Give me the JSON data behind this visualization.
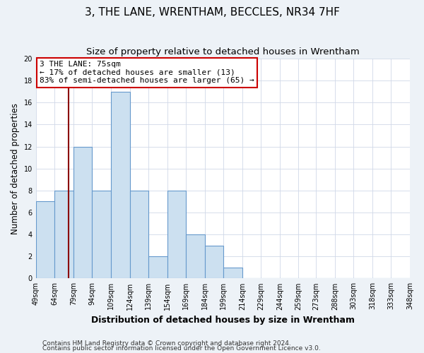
{
  "title": "3, THE LANE, WRENTHAM, BECCLES, NR34 7HF",
  "subtitle": "Size of property relative to detached houses in Wrentham",
  "xlabel": "Distribution of detached houses by size in Wrentham",
  "ylabel": "Number of detached properties",
  "bin_labels": [
    "49sqm",
    "64sqm",
    "79sqm",
    "94sqm",
    "109sqm",
    "124sqm",
    "139sqm",
    "154sqm",
    "169sqm",
    "184sqm",
    "199sqm",
    "214sqm",
    "229sqm",
    "244sqm",
    "259sqm",
    "273sqm",
    "288sqm",
    "303sqm",
    "318sqm",
    "333sqm",
    "348sqm"
  ],
  "bar_values": [
    7,
    8,
    12,
    8,
    17,
    8,
    2,
    8,
    4,
    3,
    1,
    0,
    0,
    0,
    0,
    0,
    0,
    0,
    0,
    0
  ],
  "bar_color": "#cce0f0",
  "bar_edge_color": "#6699cc",
  "bin_edges": [
    49,
    64,
    79,
    94,
    109,
    124,
    139,
    154,
    169,
    184,
    199,
    214,
    229,
    244,
    259,
    273,
    288,
    303,
    318,
    333,
    348
  ],
  "property_size": 75,
  "vline_color": "#8b0000",
  "annotation_line1": "3 THE LANE: 75sqm",
  "annotation_line2": "← 17% of detached houses are smaller (13)",
  "annotation_line3": "83% of semi-detached houses are larger (65) →",
  "annotation_box_color": "#ffffff",
  "annotation_box_edge_color": "#cc0000",
  "ylim": [
    0,
    20
  ],
  "yticks": [
    0,
    2,
    4,
    6,
    8,
    10,
    12,
    14,
    16,
    18,
    20
  ],
  "footer1": "Contains HM Land Registry data © Crown copyright and database right 2024.",
  "footer2": "Contains public sector information licensed under the Open Government Licence v3.0.",
  "fig_bg_color": "#edf2f7",
  "plot_bg_color": "#ffffff",
  "title_fontsize": 11,
  "subtitle_fontsize": 9.5,
  "ylabel_fontsize": 8.5,
  "xlabel_fontsize": 9,
  "tick_fontsize": 7,
  "annot_fontsize": 8,
  "footer_fontsize": 6.5,
  "grid_color": "#d0d8e8"
}
